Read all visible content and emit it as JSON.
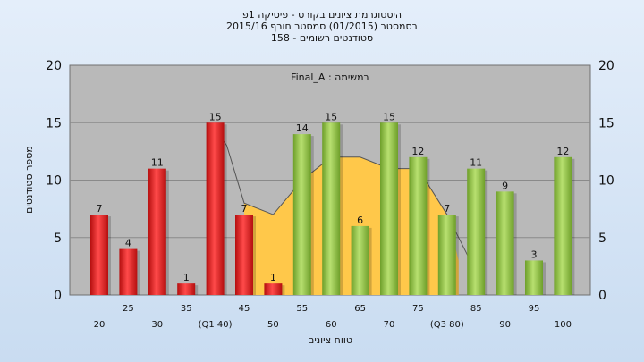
{
  "chart_data": {
    "type": "bar",
    "title": [
      "היסטוגרמת ציונים בקורס - פיסיקה 1פ",
      "בסמסטר  (01/2015)  סמסטר חורף 2015/16",
      "סטודנטים רשומים - 158"
    ],
    "subtitle": "במשימה : Final_A",
    "xlabel": "טווח ציונים",
    "ylabel": "מספר סטודנטים",
    "ylim": [
      0,
      20
    ],
    "yticks": [
      0,
      5,
      10,
      15,
      20
    ],
    "grid": true,
    "categories": [
      "20",
      "25",
      "30",
      "35",
      "(Q1 40)",
      "45",
      "50",
      "55",
      "60",
      "65",
      "70",
      "75",
      "(Q3 80)",
      "85",
      "90",
      "95",
      "100"
    ],
    "values": [
      7,
      4,
      11,
      1,
      15,
      7,
      1,
      14,
      15,
      6,
      15,
      12,
      7,
      11,
      9,
      3,
      12
    ],
    "bar_labels": [
      "7",
      "4",
      "11",
      "1",
      "15",
      "7",
      "1",
      "14",
      "15",
      "6",
      "15",
      "12",
      "7",
      "11",
      "9",
      "3",
      "12"
    ],
    "colors": [
      "red",
      "red",
      "red",
      "red",
      "red",
      "red",
      "red",
      "green",
      "green",
      "green",
      "green",
      "green",
      "green",
      "green",
      "green",
      "green",
      "green"
    ],
    "palette": {
      "red": "#e02020",
      "green": "#8fc43c",
      "band": "#ffc84a",
      "plot_bg": "#b9b9b9"
    },
    "band": {
      "x": [
        45,
        50,
        55,
        60,
        65,
        70,
        75,
        80,
        82
      ],
      "y": [
        8,
        7,
        10,
        12,
        12,
        11,
        11,
        7,
        3
      ]
    },
    "trend_line": {
      "x": [
        40,
        42,
        45,
        50,
        55,
        60,
        65,
        70,
        75,
        80,
        85
      ],
      "y": [
        14.5,
        13,
        8,
        7,
        10,
        12,
        12,
        11,
        11,
        7,
        2
      ]
    }
  }
}
